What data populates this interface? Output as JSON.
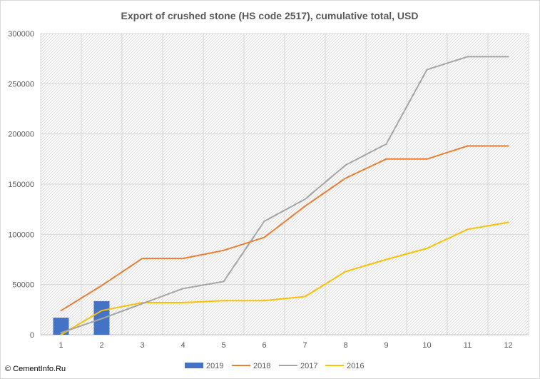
{
  "chart_data": {
    "type": "bar",
    "title": "Export of crushed stone (HS code 2517), cumulative total, USD",
    "xlabel": "",
    "ylabel": "",
    "categories": [
      "1",
      "2",
      "3",
      "4",
      "5",
      "6",
      "7",
      "8",
      "9",
      "10",
      "11",
      "12"
    ],
    "ylim": [
      0,
      300000
    ],
    "yticks": [
      0,
      50000,
      100000,
      150000,
      200000,
      250000,
      300000
    ],
    "grid": true,
    "legend_position": "bottom",
    "series": [
      {
        "name": "2019",
        "type": "bar",
        "color": "#4472c4",
        "values": [
          17000,
          33500,
          null,
          null,
          null,
          null,
          null,
          null,
          null,
          null,
          null,
          null
        ]
      },
      {
        "name": "2018",
        "type": "line",
        "color": "#ed7d31",
        "values": [
          24000,
          49000,
          76000,
          76000,
          84000,
          97000,
          128000,
          156000,
          175000,
          175000,
          188000,
          188000
        ]
      },
      {
        "name": "2017",
        "type": "line",
        "color": "#a5a5a5",
        "values": [
          2000,
          16000,
          31000,
          46000,
          53000,
          113000,
          135000,
          169000,
          190000,
          264000,
          277000,
          277000
        ]
      },
      {
        "name": "2016",
        "type": "line",
        "color": "#ffc000",
        "values": [
          0,
          24000,
          32000,
          32000,
          34000,
          34000,
          38000,
          63000,
          75000,
          86000,
          105000,
          112000
        ]
      }
    ]
  },
  "copyright": "© CementInfo.Ru"
}
